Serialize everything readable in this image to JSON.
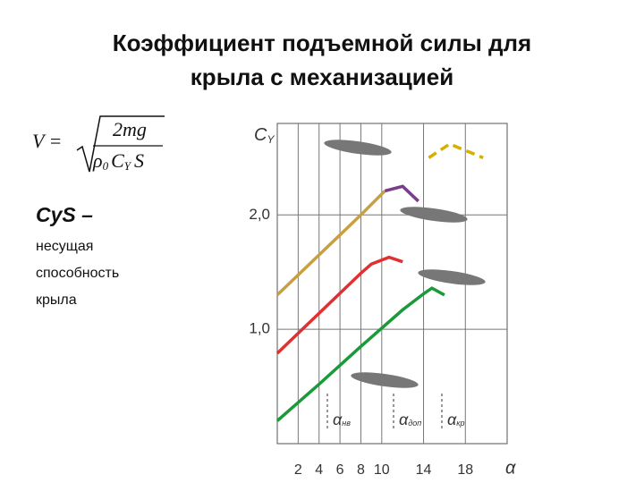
{
  "header": {
    "title_lines": [
      "Коэффициент подъемной силы для",
      "крыла с механизацией"
    ]
  },
  "formula": {
    "lhs": "V =",
    "numerator": "2mg",
    "rho": "ρ",
    "rho_sub": "0",
    "cy": "C",
    "cy_sub": "Y",
    "s": "S"
  },
  "text": {
    "term": "CyS –",
    "lines": [
      "несущая",
      "способность",
      "крыла"
    ]
  },
  "chart_data": {
    "type": "line",
    "y_label": "C",
    "y_label_sub": "Y",
    "x_label": "α",
    "xlim": [
      0,
      22
    ],
    "ylim": [
      0,
      2.8
    ],
    "xticks": [
      2,
      4,
      6,
      8,
      10,
      14,
      18
    ],
    "yticks": [
      {
        "value": 1,
        "label": "1,0"
      },
      {
        "value": 2,
        "label": "2,0"
      }
    ],
    "grid": true,
    "annotations": [
      {
        "symbol": "α",
        "subscript": "нв"
      },
      {
        "symbol": "α",
        "subscript": "доп"
      },
      {
        "symbol": "α",
        "subscript": "кр"
      }
    ],
    "series": [
      {
        "color": "#1a9a3a",
        "x": [
          0,
          4,
          8,
          12,
          14,
          14.8,
          16
        ],
        "values": [
          0.2,
          0.52,
          0.85,
          1.17,
          1.31,
          1.36,
          1.3
        ]
      },
      {
        "color": "#e03030",
        "x": [
          0,
          4,
          8,
          9,
          10.7,
          12
        ],
        "values": [
          0.79,
          1.14,
          1.49,
          1.57,
          1.63,
          1.59
        ]
      },
      {
        "color": "#c8a040",
        "x": [
          0,
          4,
          8,
          10.3
        ],
        "values": [
          1.3,
          1.65,
          2.0,
          2.21
        ]
      },
      {
        "color": "#7a3d8a",
        "x": [
          10.3,
          12,
          13.5
        ],
        "values": [
          2.21,
          2.25,
          2.12
        ]
      },
      {
        "color": "#d4b000",
        "x": [
          14.5,
          16.5,
          19.7
        ],
        "values": [
          2.5,
          2.62,
          2.5
        ]
      }
    ]
  }
}
